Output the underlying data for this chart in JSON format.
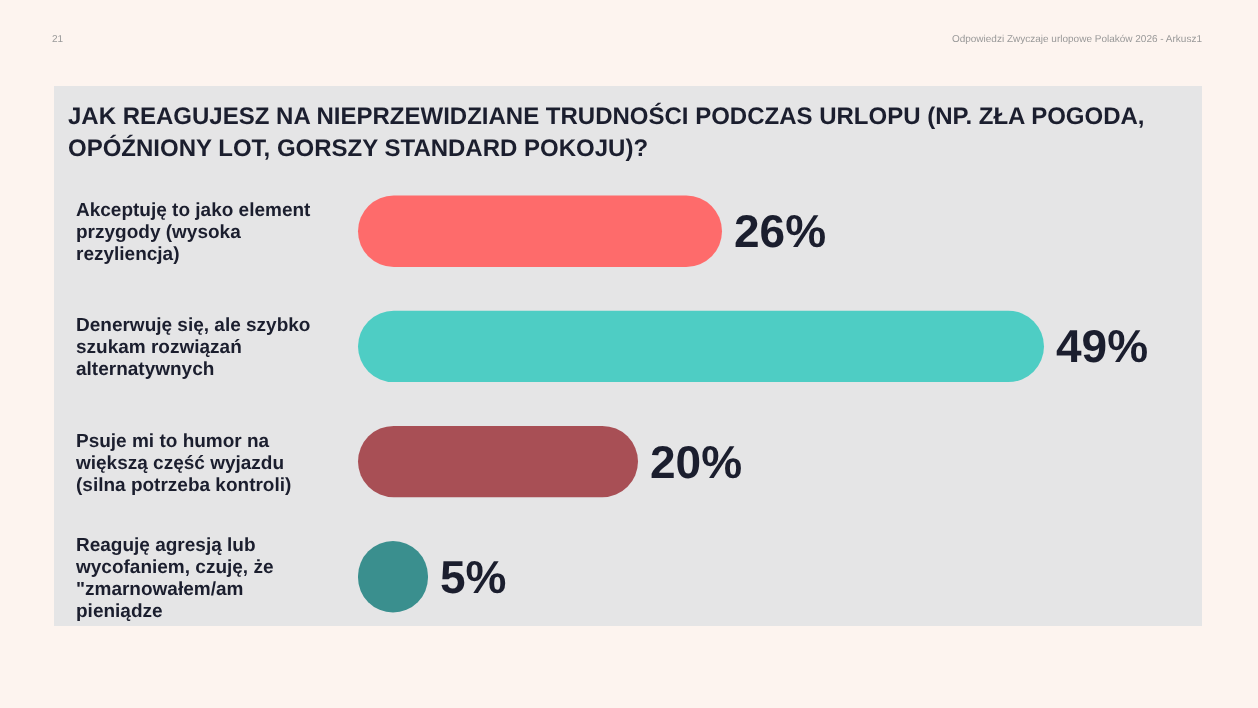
{
  "chart_data": {
    "type": "bar",
    "orientation": "horizontal",
    "title": "JAK REAGUJESZ NA NIEPRZEWIDZIANE TRUDNOŚCI PODCZAS URLOPU (NP. ZŁA POGODA, OPÓŹNIONY LOT, GORSZY STANDARD POKOJU)?",
    "categories": [
      "Akceptuję to jako element przygody (wysoka rezyliencja)",
      "Denerwuję się, ale szybko szukam rozwiązań alternatywnych",
      "Psuje mi to humor na większą część wyjazdu (silna potrzeba kontroli)",
      "Reaguję agresją lub wycofaniem, czuję, że \"zmarnowałem/am pieniądze"
    ],
    "values": [
      26,
      49,
      20,
      5
    ],
    "colors": [
      "#fe6b6b",
      "#4ecdc4",
      "#a84f55",
      "#3a8f8e"
    ],
    "value_labels": [
      "26%",
      "49%",
      "20%",
      "5%"
    ],
    "annotations": [
      "21",
      "Odpowiedzi Zwyczaje urlopowe Polaków 2026 - Arkusz1"
    ]
  }
}
